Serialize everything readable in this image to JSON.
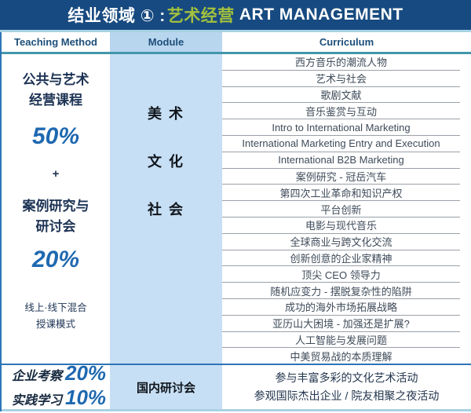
{
  "header": {
    "title_prefix": "结业领域 ① :",
    "title_highlight": "艺术经营",
    "title_suffix": "ART MANAGEMENT"
  },
  "columns": {
    "teaching_method": "Teaching Method",
    "module": "Module",
    "curriculum": "Curriculum"
  },
  "teaching_method": {
    "block1_line1": "公共与艺术",
    "block1_line2": "经营课程",
    "block1_percent": "50%",
    "plus": "+",
    "block2_line1": "案例研究与",
    "block2_line2": "研讨会",
    "block2_percent": "20%",
    "mode_line1": "线上·线下混合",
    "mode_line2": "授课模式",
    "bottom": [
      {
        "label": "企业考察",
        "percent": "20%"
      },
      {
        "label": "实践学习",
        "percent": "10%"
      }
    ]
  },
  "module": {
    "items": [
      "美  术",
      "文  化",
      "社  会"
    ],
    "bottom": "国内研讨会"
  },
  "curriculum": {
    "rows": [
      "西方音乐的潮流人物",
      "艺术与社会",
      "歌剧文献",
      "音乐鉴赏与互动",
      "Intro to International Marketing",
      "International Marketing Entry and Execution",
      "International B2B Marketing",
      "案例研究 - 冠岳汽车",
      "第四次工业革命和知识产权",
      "平台创新",
      "电影与现代音乐",
      "全球商业与跨文化交流",
      "创新创意的企业家精神",
      "顶尖 CEO 领导力",
      "随机应变力 - 摆脱复杂性的陷阱",
      "成功的海外市场拓展战略",
      "亚历山大困境 - 加强还是扩展?",
      "人工智能与发展问题",
      "中美贸易战的本质理解"
    ],
    "bottom": [
      "参与丰富多彩的文化艺术活动",
      "参观国际杰出企业 / 院友相聚之夜活动"
    ]
  },
  "colors": {
    "navy": "#174a80",
    "highlight_green": "#a3c13d",
    "module_bg": "#c7dff4",
    "accent_blue": "#1e68b0",
    "teal_line": "#4396ab",
    "light_line": "#a9d2e4"
  }
}
